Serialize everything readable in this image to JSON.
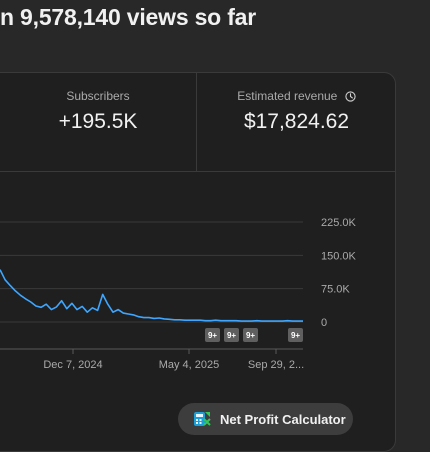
{
  "header": {
    "title": "n 9,578,140 views so far"
  },
  "metrics": {
    "subscribers": {
      "label": "Subscribers",
      "value": "+195.5K"
    },
    "revenue": {
      "label": "Estimated revenue",
      "value": "$17,824.62",
      "icon": "clock-icon"
    }
  },
  "chart_data": {
    "type": "line",
    "series": [
      {
        "color": "#3ea6ff",
        "values": [
          118,
          95,
          82,
          70,
          60,
          52,
          45,
          36,
          33,
          40,
          28,
          34,
          48,
          30,
          42,
          28,
          35,
          22,
          32,
          26,
          62,
          40,
          22,
          28,
          20,
          18,
          16,
          12,
          10,
          10,
          8,
          9,
          7,
          6,
          5,
          5,
          4,
          4,
          4,
          4,
          3,
          3,
          4,
          3,
          3,
          3,
          3,
          2,
          2,
          2,
          3,
          2,
          2,
          2,
          2,
          2,
          3,
          2,
          2,
          2
        ]
      }
    ],
    "yticks": [
      "225.0K",
      "150.0K",
      "75.0K",
      "0"
    ],
    "ylim": [
      0,
      225000
    ],
    "xticks": [
      "Dec 7, 2024",
      "May 4, 2025",
      "Sep 29, 2..."
    ],
    "badges": [
      "9+",
      "9+",
      "9+",
      "9+"
    ],
    "grid": true
  },
  "cta": {
    "label": "Net Profit Calculator",
    "icon": "calculator-icon"
  }
}
